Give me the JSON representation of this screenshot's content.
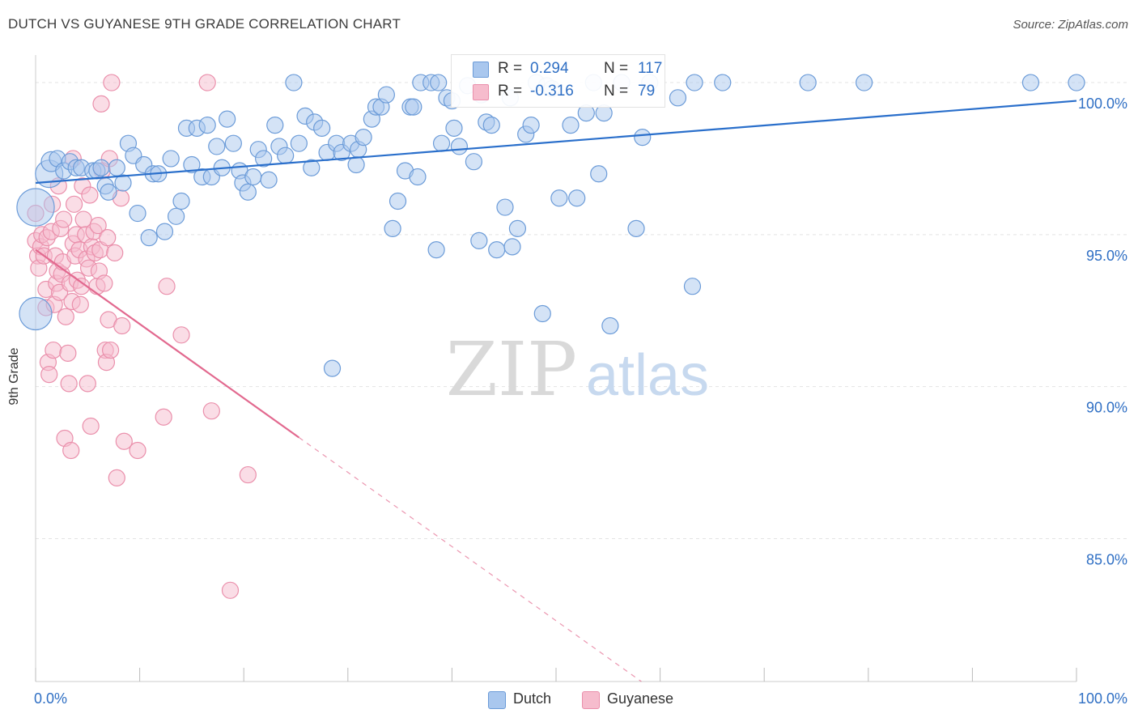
{
  "title": "DUTCH VS GUYANESE 9TH GRADE CORRELATION CHART",
  "source": "Source: ZipAtlas.com",
  "watermark": {
    "part1": "ZIP",
    "part2": "atlas"
  },
  "legend": {
    "dutch": {
      "r_label": "R =",
      "r_value": "0.294",
      "n_label": "N =",
      "n_value": "117"
    },
    "guyanese": {
      "r_label": "R =",
      "r_value": "-0.316",
      "n_label": "N =",
      "n_value": "79"
    }
  },
  "bottom_legend": {
    "dutch": "Dutch",
    "guyanese": "Guyanese"
  },
  "colors": {
    "dutch_fill": "#a9c7ee",
    "dutch_stroke": "#6b9bd8",
    "dutch_line": "#2a6fcb",
    "guyanese_fill": "#f6bccd",
    "guyanese_stroke": "#ea8fab",
    "guyanese_line": "#e2698f",
    "tick_text": "#2f6fc4",
    "grid": "#e3e3e3"
  },
  "chart_data": {
    "type": "scatter",
    "title": "DUTCH VS GUYANESE 9TH GRADE CORRELATION CHART",
    "xlabel": "",
    "ylabel": "9th Grade",
    "xlim": [
      0,
      100
    ],
    "ylim": [
      80.3,
      100.8
    ],
    "x_tick_labels": [
      "0.0%",
      "100.0%"
    ],
    "y_ticks": [
      {
        "value": 85,
        "label": "85.0%"
      },
      {
        "value": 90,
        "label": "90.0%"
      },
      {
        "value": 95,
        "label": "95.0%"
      },
      {
        "value": 100,
        "label": "100.0%"
      }
    ],
    "grid": true,
    "series": [
      {
        "name": "Dutch",
        "trend": {
          "x": [
            0,
            100
          ],
          "y": [
            96.7,
            99.4
          ],
          "dashed_from_x": null
        },
        "points": [
          [
            0.0,
            92.4,
            26
          ],
          [
            0.0,
            95.9,
            30
          ],
          [
            1.3,
            97.0,
            22
          ],
          [
            1.5,
            97.4,
            16
          ],
          [
            2.1,
            97.5,
            13
          ],
          [
            2.7,
            97.1,
            13
          ],
          [
            3.3,
            97.4,
            13
          ],
          [
            3.9,
            97.2,
            13
          ],
          [
            4.4,
            97.2,
            13
          ],
          [
            5.5,
            97.1,
            13
          ],
          [
            5.9,
            97.1,
            13
          ],
          [
            6.3,
            97.2,
            13
          ],
          [
            6.7,
            96.6,
            13
          ],
          [
            7.0,
            96.4,
            13
          ],
          [
            7.8,
            97.2,
            13
          ],
          [
            8.4,
            96.7,
            13
          ],
          [
            8.9,
            98.0,
            13
          ],
          [
            9.4,
            97.6,
            13
          ],
          [
            9.8,
            95.7,
            13
          ],
          [
            10.4,
            97.3,
            13
          ],
          [
            10.9,
            94.9,
            13
          ],
          [
            11.3,
            97.0,
            13
          ],
          [
            11.8,
            97.0,
            13
          ],
          [
            12.4,
            95.1,
            13
          ],
          [
            13.0,
            97.5,
            13
          ],
          [
            13.5,
            95.6,
            13
          ],
          [
            14.0,
            96.1,
            13
          ],
          [
            14.5,
            98.5,
            13
          ],
          [
            15.0,
            97.3,
            13
          ],
          [
            15.5,
            98.5,
            13
          ],
          [
            16.0,
            96.9,
            13
          ],
          [
            16.5,
            98.6,
            13
          ],
          [
            16.9,
            96.9,
            13
          ],
          [
            17.4,
            97.9,
            13
          ],
          [
            17.9,
            97.2,
            13
          ],
          [
            18.4,
            98.8,
            13
          ],
          [
            19.0,
            98.0,
            13
          ],
          [
            19.6,
            97.1,
            13
          ],
          [
            19.9,
            96.7,
            13
          ],
          [
            20.4,
            96.4,
            13
          ],
          [
            20.9,
            96.9,
            13
          ],
          [
            21.4,
            97.8,
            13
          ],
          [
            21.9,
            97.5,
            13
          ],
          [
            22.4,
            96.8,
            13
          ],
          [
            23.0,
            98.6,
            13
          ],
          [
            23.4,
            97.9,
            13
          ],
          [
            24.0,
            97.6,
            13
          ],
          [
            24.8,
            100.0,
            13
          ],
          [
            25.3,
            98.0,
            13
          ],
          [
            25.9,
            98.9,
            13
          ],
          [
            26.5,
            97.2,
            13
          ],
          [
            26.8,
            98.7,
            13
          ],
          [
            27.5,
            98.5,
            13
          ],
          [
            28.0,
            97.7,
            13
          ],
          [
            28.5,
            90.6,
            13
          ],
          [
            28.9,
            98.0,
            13
          ],
          [
            29.4,
            97.7,
            13
          ],
          [
            30.3,
            98.0,
            13
          ],
          [
            30.8,
            97.3,
            13
          ],
          [
            31.0,
            97.8,
            13
          ],
          [
            31.5,
            98.2,
            13
          ],
          [
            32.3,
            98.8,
            13
          ],
          [
            32.7,
            99.2,
            13
          ],
          [
            33.2,
            99.2,
            13
          ],
          [
            33.7,
            99.6,
            13
          ],
          [
            34.3,
            95.2,
            13
          ],
          [
            34.8,
            96.1,
            13
          ],
          [
            35.5,
            97.1,
            13
          ],
          [
            36.0,
            99.2,
            13
          ],
          [
            36.3,
            99.2,
            13
          ],
          [
            36.7,
            96.9,
            13
          ],
          [
            37.0,
            100.0,
            13
          ],
          [
            38.0,
            100.0,
            13
          ],
          [
            38.5,
            94.5,
            13
          ],
          [
            39.0,
            98.0,
            13
          ],
          [
            39.5,
            99.5,
            13
          ],
          [
            40.0,
            99.4,
            13
          ],
          [
            40.2,
            98.5,
            13
          ],
          [
            40.7,
            97.9,
            13
          ],
          [
            41.5,
            99.9,
            13
          ],
          [
            42.1,
            97.4,
            13
          ],
          [
            42.6,
            94.8,
            13
          ],
          [
            42.8,
            99.6,
            13
          ],
          [
            43.3,
            98.7,
            13
          ],
          [
            43.8,
            98.6,
            13
          ],
          [
            44.3,
            94.5,
            13
          ],
          [
            45.1,
            95.9,
            13
          ],
          [
            45.6,
            99.5,
            13
          ],
          [
            45.8,
            94.6,
            13
          ],
          [
            46.3,
            95.2,
            13
          ],
          [
            47.1,
            98.3,
            13
          ],
          [
            47.6,
            98.6,
            13
          ],
          [
            48.1,
            100.0,
            13
          ],
          [
            48.7,
            92.4,
            13
          ],
          [
            49.1,
            99.9,
            13
          ],
          [
            49.6,
            99.8,
            13
          ],
          [
            50.3,
            96.2,
            13
          ],
          [
            51.4,
            98.6,
            13
          ],
          [
            52.0,
            96.2,
            13
          ],
          [
            52.9,
            99.0,
            13
          ],
          [
            53.6,
            100.0,
            13
          ],
          [
            54.1,
            97.0,
            13
          ],
          [
            54.6,
            99.0,
            13
          ],
          [
            55.2,
            92.0,
            13
          ],
          [
            56.3,
            100.0,
            13
          ],
          [
            57.7,
            95.2,
            13
          ],
          [
            58.3,
            98.2,
            13
          ],
          [
            59.0,
            100.0,
            13
          ],
          [
            61.7,
            99.5,
            13
          ],
          [
            63.1,
            93.3,
            13
          ],
          [
            63.3,
            100.0,
            13
          ],
          [
            66.0,
            100.0,
            13
          ],
          [
            74.2,
            100.0,
            13
          ],
          [
            79.6,
            100.0,
            13
          ],
          [
            95.6,
            100.0,
            13
          ],
          [
            100.0,
            100.0,
            13
          ],
          [
            38.7,
            100.0,
            13
          ]
        ]
      },
      {
        "name": "Guyanese",
        "trend": {
          "x": [
            0,
            100
          ],
          "y": [
            94.5,
            70.1
          ],
          "dashed_from_x": 25.3
        },
        "points": [
          [
            0.0,
            95.7,
            13
          ],
          [
            0.0,
            94.8,
            13
          ],
          [
            0.2,
            94.3,
            13
          ],
          [
            0.3,
            93.9,
            13
          ],
          [
            0.5,
            94.6,
            13
          ],
          [
            0.6,
            95.0,
            13
          ],
          [
            0.8,
            94.3,
            13
          ],
          [
            1.0,
            92.6,
            13
          ],
          [
            1.0,
            93.2,
            13
          ],
          [
            1.1,
            94.9,
            13
          ],
          [
            1.2,
            90.8,
            13
          ],
          [
            1.3,
            90.4,
            13
          ],
          [
            1.5,
            95.1,
            13
          ],
          [
            1.6,
            96.0,
            13
          ],
          [
            1.7,
            91.2,
            13
          ],
          [
            1.8,
            92.7,
            13
          ],
          [
            1.9,
            94.3,
            13
          ],
          [
            2.0,
            93.4,
            13
          ],
          [
            2.1,
            93.8,
            13
          ],
          [
            2.2,
            96.6,
            13
          ],
          [
            2.3,
            93.1,
            13
          ],
          [
            2.4,
            95.2,
            13
          ],
          [
            2.5,
            93.7,
            13
          ],
          [
            2.6,
            94.1,
            13
          ],
          [
            2.7,
            95.5,
            13
          ],
          [
            2.8,
            88.3,
            13
          ],
          [
            2.9,
            92.3,
            13
          ],
          [
            3.1,
            91.1,
            13
          ],
          [
            3.2,
            90.1,
            13
          ],
          [
            3.3,
            93.4,
            13
          ],
          [
            3.4,
            87.9,
            13
          ],
          [
            3.5,
            92.8,
            13
          ],
          [
            3.6,
            94.7,
            13
          ],
          [
            3.7,
            96.0,
            13
          ],
          [
            3.8,
            94.3,
            13
          ],
          [
            3.9,
            95.0,
            13
          ],
          [
            4.0,
            93.5,
            13
          ],
          [
            4.2,
            94.5,
            13
          ],
          [
            4.3,
            92.7,
            13
          ],
          [
            4.4,
            93.3,
            13
          ],
          [
            4.5,
            96.6,
            13
          ],
          [
            4.6,
            95.5,
            13
          ],
          [
            4.8,
            95.0,
            13
          ],
          [
            4.9,
            94.2,
            13
          ],
          [
            5.0,
            90.1,
            13
          ],
          [
            5.1,
            93.9,
            13
          ],
          [
            5.2,
            96.3,
            13
          ],
          [
            5.3,
            88.7,
            13
          ],
          [
            5.4,
            94.6,
            13
          ],
          [
            5.6,
            95.1,
            13
          ],
          [
            5.7,
            94.4,
            13
          ],
          [
            5.9,
            93.3,
            13
          ],
          [
            6.0,
            95.3,
            13
          ],
          [
            6.1,
            93.8,
            13
          ],
          [
            6.2,
            94.5,
            13
          ],
          [
            6.3,
            99.3,
            13
          ],
          [
            6.4,
            97.1,
            13
          ],
          [
            6.6,
            93.4,
            13
          ],
          [
            6.7,
            91.2,
            13
          ],
          [
            6.8,
            90.8,
            13
          ],
          [
            6.9,
            94.9,
            13
          ],
          [
            7.0,
            92.2,
            13
          ],
          [
            7.1,
            97.5,
            13
          ],
          [
            7.2,
            91.2,
            13
          ],
          [
            7.3,
            100.0,
            13
          ],
          [
            7.6,
            94.4,
            13
          ],
          [
            7.8,
            87.0,
            13
          ],
          [
            8.2,
            96.2,
            13
          ],
          [
            8.3,
            92.0,
            13
          ],
          [
            8.5,
            88.2,
            13
          ],
          [
            9.8,
            87.9,
            13
          ],
          [
            12.3,
            89.0,
            13
          ],
          [
            12.6,
            93.3,
            13
          ],
          [
            14.0,
            91.7,
            13
          ],
          [
            16.5,
            100.0,
            13
          ],
          [
            16.9,
            89.2,
            13
          ],
          [
            18.7,
            83.3,
            13
          ],
          [
            20.4,
            87.1,
            13
          ],
          [
            3.6,
            97.5,
            13
          ]
        ]
      }
    ]
  }
}
